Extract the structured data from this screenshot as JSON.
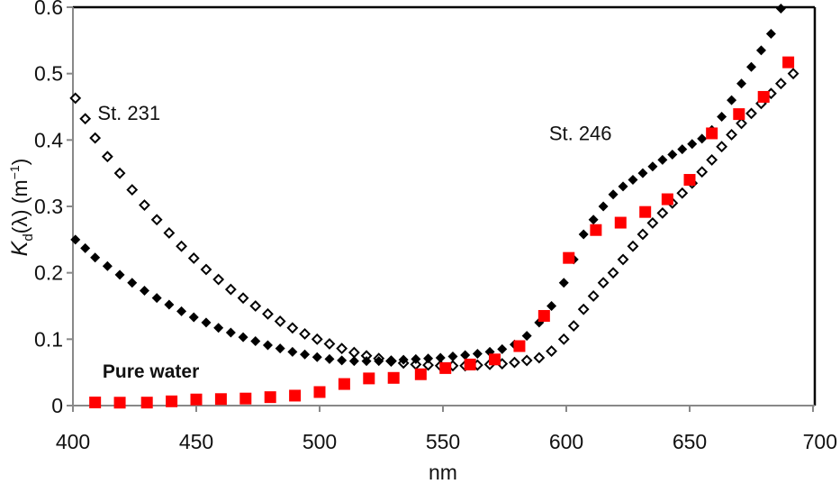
{
  "chart_data": {
    "type": "scatter",
    "title": "",
    "xlabel": "nm",
    "ylabel": {
      "main": "K",
      "sub": "d",
      "rest": "(λ) (m",
      "sup": "−1",
      "close": ")"
    },
    "xlim": [
      400,
      700
    ],
    "ylim": [
      0,
      0.6
    ],
    "x_ticks": [
      400,
      450,
      500,
      550,
      600,
      650,
      700
    ],
    "x_tick_labels": [
      "400",
      "450",
      "500",
      "550",
      "600",
      "650",
      "700"
    ],
    "y_ticks": [
      0,
      0.1,
      0.2,
      0.3,
      0.4,
      0.5,
      0.6
    ],
    "y_tick_labels": [
      "0",
      "0.1",
      "0.2",
      "0.3",
      "0.4",
      "0.5",
      "0.6"
    ],
    "grid": false,
    "annotations": [
      {
        "text": "St. 231",
        "x": 410,
        "y": 0.43
      },
      {
        "text": "St. 246",
        "x": 593,
        "y": 0.4
      },
      {
        "text": "Pure water",
        "x": 412,
        "y": 0.042
      }
    ],
    "series": [
      {
        "name": "St. 231",
        "marker": "diamond-open",
        "color": "#000000",
        "x": [
          401,
          405,
          409,
          414,
          419,
          424,
          429,
          434,
          439,
          444,
          449,
          454,
          459,
          464,
          469,
          474,
          479,
          484,
          489,
          494,
          499,
          504,
          509,
          514,
          519,
          524,
          529,
          534,
          539,
          544,
          549,
          554,
          559,
          564,
          569,
          574,
          579,
          584,
          589,
          594,
          599,
          603,
          607,
          611,
          615,
          619,
          623,
          627,
          631,
          635,
          639,
          643,
          647,
          651,
          655,
          659,
          663,
          667,
          671,
          675,
          679,
          683,
          687,
          692
        ],
        "y": [
          0.463,
          0.432,
          0.403,
          0.375,
          0.35,
          0.325,
          0.302,
          0.28,
          0.26,
          0.24,
          0.222,
          0.205,
          0.19,
          0.175,
          0.162,
          0.15,
          0.138,
          0.127,
          0.117,
          0.108,
          0.1,
          0.093,
          0.086,
          0.08,
          0.075,
          0.071,
          0.067,
          0.064,
          0.062,
          0.061,
          0.06,
          0.06,
          0.06,
          0.061,
          0.062,
          0.063,
          0.065,
          0.068,
          0.072,
          0.082,
          0.1,
          0.12,
          0.145,
          0.165,
          0.185,
          0.2,
          0.22,
          0.24,
          0.258,
          0.275,
          0.29,
          0.305,
          0.32,
          0.335,
          0.352,
          0.37,
          0.39,
          0.408,
          0.425,
          0.44,
          0.455,
          0.47,
          0.485,
          0.5
        ]
      },
      {
        "name": "St. 246",
        "marker": "diamond-filled",
        "color": "#000000",
        "x": [
          401,
          405,
          409,
          414,
          419,
          424,
          429,
          434,
          439,
          444,
          449,
          454,
          459,
          464,
          469,
          474,
          479,
          484,
          489,
          494,
          499,
          504,
          509,
          514,
          519,
          524,
          529,
          534,
          539,
          544,
          549,
          554,
          559,
          564,
          569,
          574,
          579,
          584,
          589,
          594,
          599,
          603,
          607,
          611,
          615,
          619,
          623,
          627,
          631,
          635,
          639,
          643,
          647,
          651,
          655,
          659,
          663,
          667,
          671,
          675,
          679,
          683,
          687
        ],
        "y": [
          0.25,
          0.237,
          0.223,
          0.21,
          0.197,
          0.185,
          0.173,
          0.162,
          0.152,
          0.142,
          0.133,
          0.125,
          0.117,
          0.11,
          0.103,
          0.097,
          0.091,
          0.086,
          0.081,
          0.077,
          0.073,
          0.07,
          0.068,
          0.067,
          0.067,
          0.067,
          0.068,
          0.069,
          0.07,
          0.071,
          0.072,
          0.074,
          0.076,
          0.078,
          0.081,
          0.085,
          0.092,
          0.105,
          0.125,
          0.15,
          0.185,
          0.22,
          0.258,
          0.28,
          0.3,
          0.318,
          0.33,
          0.34,
          0.35,
          0.36,
          0.37,
          0.378,
          0.386,
          0.394,
          0.402,
          0.415,
          0.435,
          0.46,
          0.485,
          0.51,
          0.535,
          0.56,
          0.598
        ]
      },
      {
        "name": "Pure water",
        "marker": "square",
        "color": "#ff0000",
        "x": [
          409,
          419,
          430,
          440,
          450,
          460,
          470,
          480,
          490,
          500,
          510,
          520,
          530,
          541,
          551,
          561,
          571,
          581,
          591,
          601,
          612,
          622,
          632,
          641,
          650,
          659,
          670,
          680,
          690
        ],
        "y": [
          0.0047,
          0.0044,
          0.0045,
          0.0064,
          0.0092,
          0.0098,
          0.0106,
          0.0127,
          0.015,
          0.0204,
          0.0325,
          0.0409,
          0.0417,
          0.0472,
          0.0565,
          0.0619,
          0.0695,
          0.0896,
          0.1351,
          0.2224,
          0.2644,
          0.2755,
          0.2916,
          0.3108,
          0.34,
          0.41,
          0.439,
          0.465,
          0.517
        ]
      }
    ]
  }
}
